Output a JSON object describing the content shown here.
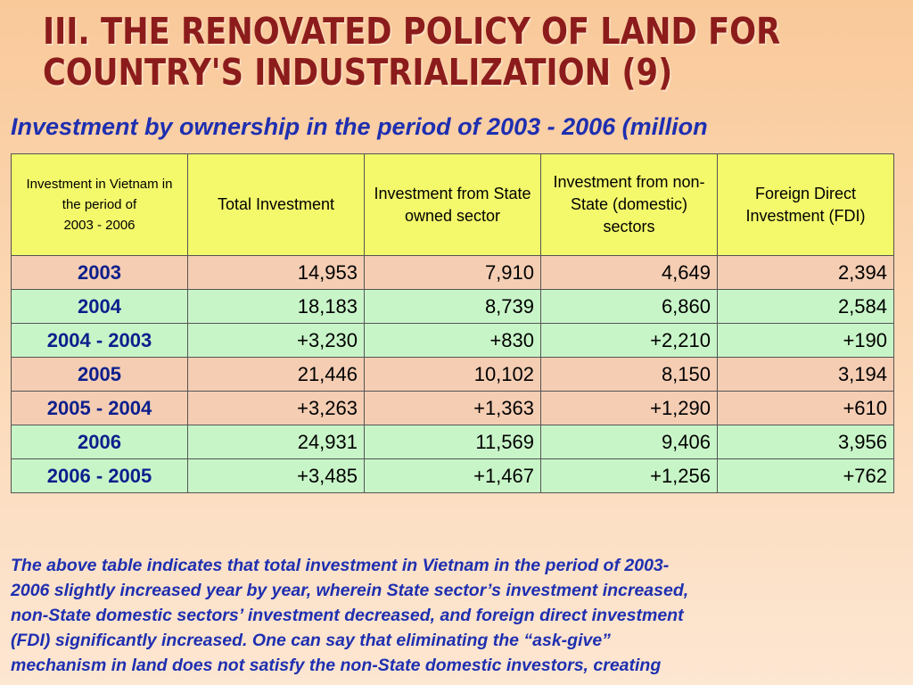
{
  "title": {
    "line1": "III. The renovated policy of land for",
    "line2": "country's industrialization (9)"
  },
  "subtitle": "Investment by ownership in the period of 2003 - 2006 (million",
  "table": {
    "header": {
      "col1_line1": "Investment in Vietnam in the period of",
      "col1_line2": "2003 - 2006",
      "col2": "Total Investment",
      "col3": "Investment from State owned sector",
      "col4": "Investment from non-State (domestic) sectors",
      "col5": "Foreign Direct Investment (FDI)"
    },
    "rows": [
      {
        "label": "2003",
        "total": "14,953",
        "state": "7,910",
        "nonstate": "4,649",
        "fdi": "2,394"
      },
      {
        "label": "2004",
        "total": "18,183",
        "state": "8,739",
        "nonstate": "6,860",
        "fdi": "2,584"
      },
      {
        "label": "2004 - 2003",
        "total": "+3,230",
        "state": "+830",
        "nonstate": "+2,210",
        "fdi": "+190"
      },
      {
        "label": "2005",
        "total": "21,446",
        "state": "10,102",
        "nonstate": "8,150",
        "fdi": "3,194"
      },
      {
        "label": "2005 - 2004",
        "total": "+3,263",
        "state": "+1,363",
        "nonstate": "+1,290",
        "fdi": "+610"
      },
      {
        "label": "2006",
        "total": "24,931",
        "state": "11,569",
        "nonstate": "9,406",
        "fdi": "3,956"
      },
      {
        "label": "2006 - 2005",
        "total": "+3,485",
        "state": "+1,467",
        "nonstate": "+1,256",
        "fdi": "+762"
      }
    ]
  },
  "paragraph": {
    "lines": [
      "The above table indicates that total investment in Vietnam in the period of 2003-",
      "2006 slightly increased year by year, wherein State sector’s investment increased,",
      "non-State domestic sectors’ investment decreased, and foreign direct investment",
      "(FDI) significantly increased. One can say that eliminating the “ask-give”",
      "mechanism in land does not satisfy the non-State domestic investors, creating"
    ]
  },
  "colors": {
    "title": "#8c1c1c",
    "accent_blue": "#1e2fb0",
    "header_bg": "#f3f96a",
    "row_peach": "#f4cdb3",
    "row_green": "#c8f5c8"
  }
}
